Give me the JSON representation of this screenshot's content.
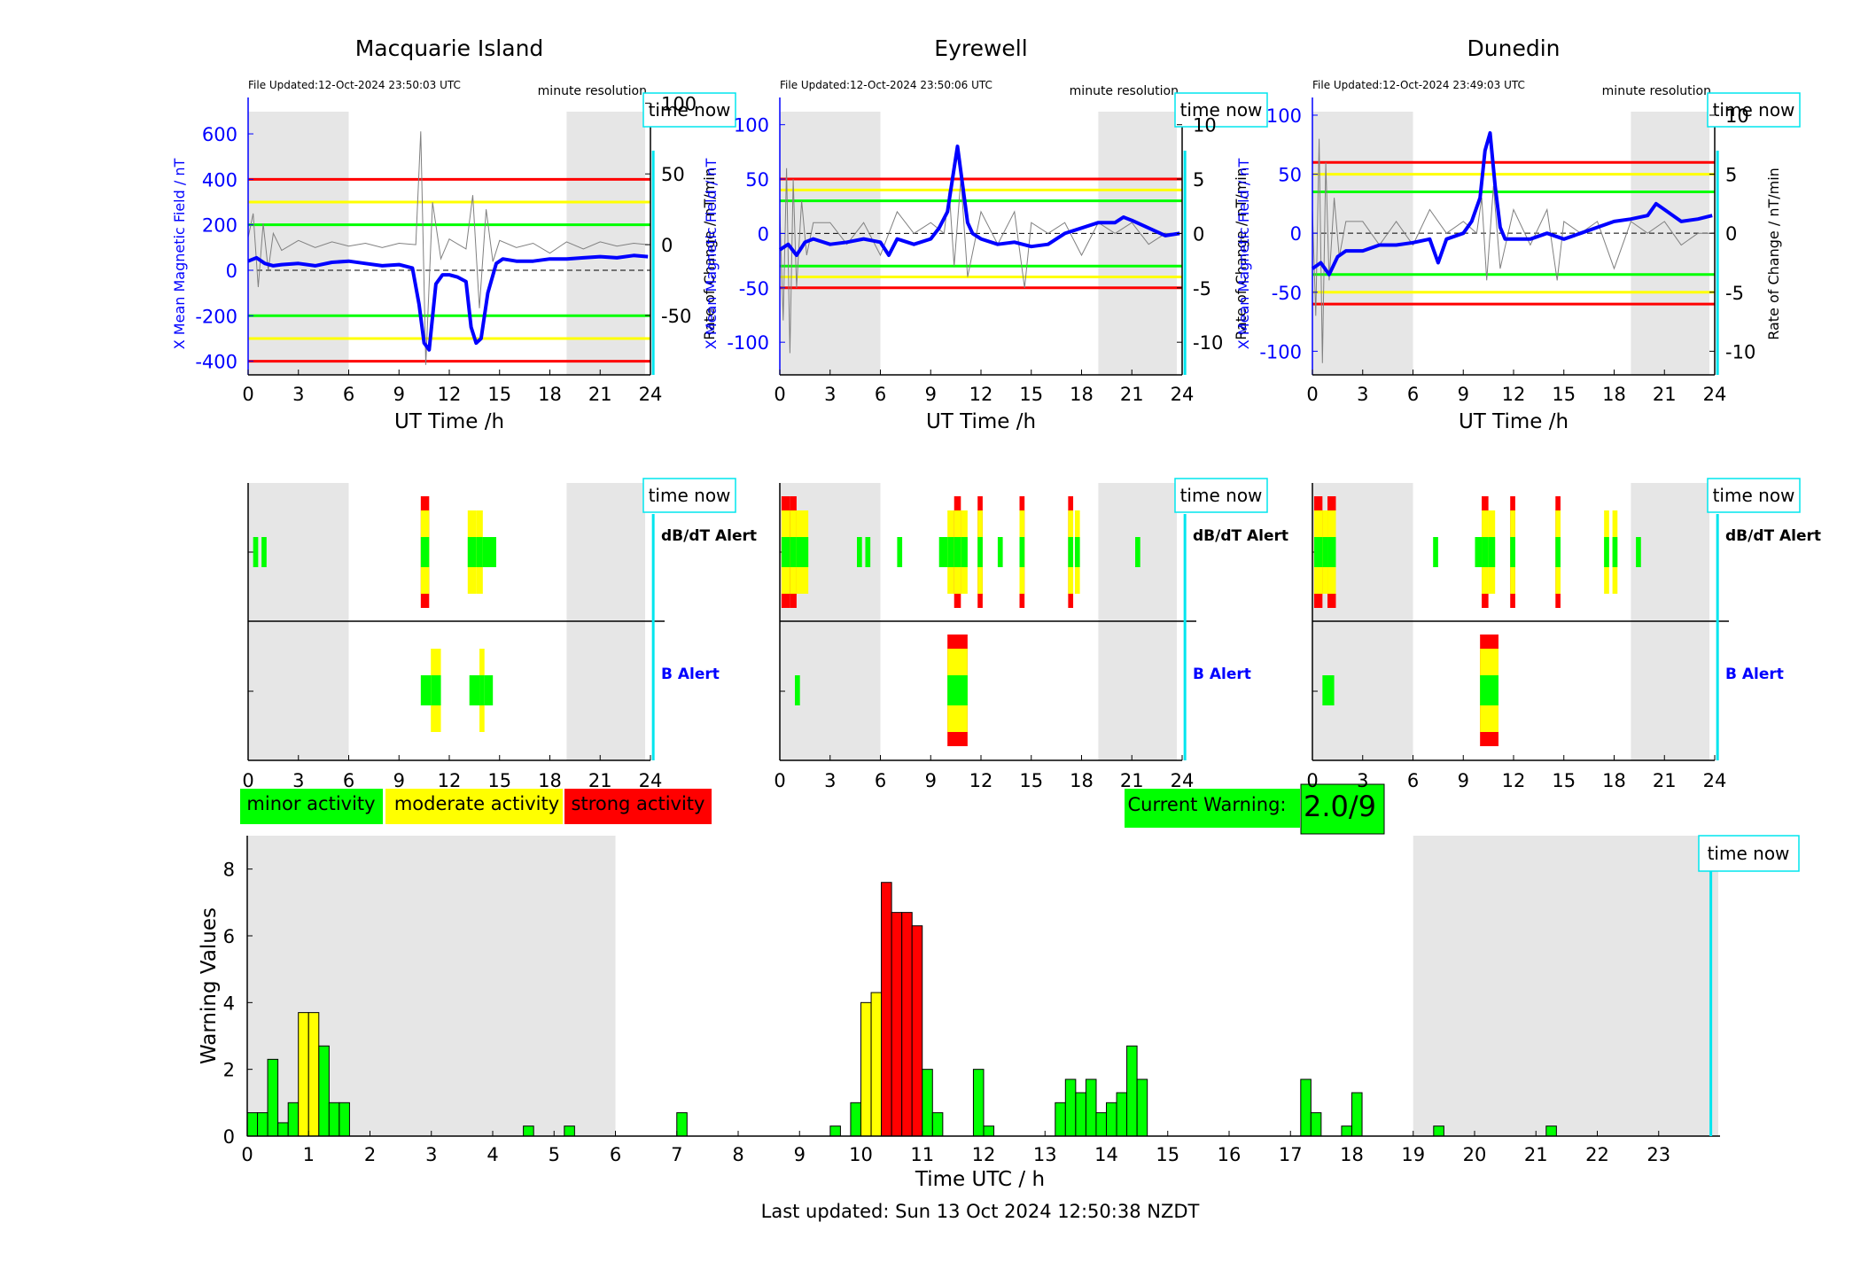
{
  "colors": {
    "minor": "#00ff00",
    "moderate": "#ffff00",
    "strong": "#ff0000",
    "x_trace": "#0000ff",
    "rate_trace": "#808080",
    "night_shade": "#e6e6e6",
    "time_now_line": "#00e5ee"
  },
  "labels": {
    "time_now": "time now",
    "minute_resolution": "minute resolution",
    "x_axis_top": "UT Time /h",
    "ylabel_left": "X Mean Magnetic Field / nT",
    "ylabel_right": "Rate of Change / nT/min",
    "dbdt_alert": "dB/dT Alert",
    "b_alert": "B Alert",
    "legend_minor": "minor activity",
    "legend_moderate": "moderate activity",
    "legend_strong": "strong activity",
    "current_warning_label": "Current Warning:",
    "current_warning_value": "2.0/9",
    "bottom_xlabel": "Time UTC / h",
    "bottom_ylabel": "Warning Values",
    "last_updated": "Last updated: Sun 13 Oct 2024 12:50:38 NZDT"
  },
  "chart_data": [
    {
      "type": "line",
      "station": "Macquarie Island",
      "file_updated": "File Updated:12-Oct-2024 23:50:03 UTC",
      "xlim": [
        0,
        24
      ],
      "x_ticks": [
        0,
        3,
        6,
        9,
        12,
        15,
        18,
        21,
        24
      ],
      "ylim_left": [
        -460,
        760
      ],
      "y_ticks_left": [
        -400,
        -200,
        0,
        200,
        400,
        600
      ],
      "ylim_right": [
        -92,
        104
      ],
      "y_ticks_right": [
        -50,
        0,
        50,
        100
      ],
      "thresholds": {
        "minor": 200,
        "moderate": 300,
        "strong": 400
      },
      "night_shading": [
        [
          0,
          6
        ],
        [
          19,
          24
        ]
      ],
      "time_now": 23.85,
      "x_series": {
        "x": [
          0,
          0.5,
          1,
          1.5,
          2,
          3,
          4,
          5,
          6,
          7,
          8,
          9,
          9.8,
          10.2,
          10.5,
          10.8,
          11.2,
          11.6,
          12,
          12.5,
          13,
          13.3,
          13.6,
          13.9,
          14.3,
          14.8,
          15.2,
          16,
          17,
          18,
          19,
          20,
          21,
          22,
          23,
          23.85
        ],
        "y": [
          40,
          55,
          30,
          20,
          25,
          30,
          20,
          35,
          40,
          30,
          20,
          25,
          10,
          -150,
          -320,
          -350,
          -60,
          -20,
          -20,
          -30,
          -50,
          -250,
          -320,
          -300,
          -100,
          30,
          50,
          40,
          40,
          50,
          50,
          55,
          60,
          55,
          65,
          60
        ]
      },
      "rate_series": {
        "x": [
          0,
          0.3,
          0.6,
          0.9,
          1.2,
          1.5,
          2,
          3,
          4,
          5,
          6,
          7,
          8,
          9,
          10,
          10.3,
          10.6,
          11,
          11.5,
          12,
          13,
          13.4,
          13.8,
          14.2,
          14.6,
          15,
          16,
          17,
          18,
          19,
          20,
          21,
          22,
          23,
          23.85
        ],
        "y": [
          5,
          22,
          -30,
          15,
          -18,
          8,
          -4,
          3,
          -2,
          2,
          -1,
          1,
          -2,
          1,
          0,
          80,
          -85,
          30,
          -10,
          4,
          -3,
          35,
          -45,
          25,
          -12,
          3,
          -2,
          1,
          -6,
          2,
          -3,
          2,
          -1,
          1,
          0
        ]
      },
      "dbdt_alert": [
        {
          "start": 0.3,
          "end": 0.6,
          "level": 1
        },
        {
          "start": 0.8,
          "end": 1.1,
          "level": 1
        },
        {
          "start": 10.3,
          "end": 10.8,
          "level": 3
        },
        {
          "start": 13.1,
          "end": 13.6,
          "level": 2
        },
        {
          "start": 13.6,
          "end": 14.0,
          "level": 2
        },
        {
          "start": 14.0,
          "end": 14.8,
          "level": 1
        }
      ],
      "b_alert": [
        {
          "start": 10.3,
          "end": 10.9,
          "level": 1
        },
        {
          "start": 10.9,
          "end": 11.5,
          "level": 2
        },
        {
          "start": 13.2,
          "end": 13.8,
          "level": 1
        },
        {
          "start": 13.8,
          "end": 14.1,
          "level": 2
        },
        {
          "start": 14.1,
          "end": 14.6,
          "level": 1
        }
      ]
    },
    {
      "type": "line",
      "station": "Eyrewell",
      "file_updated": "File Updated:12-Oct-2024 23:50:06 UTC",
      "xlim": [
        0,
        24
      ],
      "x_ticks": [
        0,
        3,
        6,
        9,
        12,
        15,
        18,
        21,
        24
      ],
      "ylim_left": [
        -130,
        125
      ],
      "y_ticks_left": [
        -100,
        -50,
        0,
        50,
        100
      ],
      "ylim_right": [
        -13,
        12.5
      ],
      "y_ticks_right": [
        -10,
        -5,
        0,
        5,
        10
      ],
      "thresholds": {
        "minor": 30,
        "moderate": 40,
        "strong": 50
      },
      "night_shading": [
        [
          0,
          6
        ],
        [
          19,
          24
        ]
      ],
      "time_now": 23.85,
      "x_series": {
        "x": [
          0,
          0.5,
          1,
          1.5,
          2,
          3,
          4,
          5,
          6,
          6.5,
          7,
          8,
          9,
          9.5,
          10,
          10.3,
          10.6,
          10.9,
          11.2,
          11.5,
          12,
          13,
          14,
          15,
          16,
          17,
          18,
          19,
          20,
          20.5,
          21,
          22,
          23,
          23.85
        ],
        "y": [
          -15,
          -10,
          -20,
          -8,
          -5,
          -10,
          -8,
          -5,
          -8,
          -20,
          -5,
          -10,
          -5,
          5,
          20,
          50,
          80,
          45,
          10,
          0,
          -5,
          -10,
          -8,
          -12,
          -10,
          0,
          5,
          10,
          10,
          15,
          12,
          5,
          -2,
          0
        ]
      },
      "rate_series": {
        "x": [
          0,
          0.2,
          0.4,
          0.6,
          0.8,
          1.0,
          1.3,
          1.6,
          2,
          3,
          4,
          5,
          6,
          7,
          8,
          9,
          9.8,
          10.1,
          10.4,
          10.8,
          11.2,
          12,
          13,
          14,
          14.6,
          15,
          16,
          17,
          18,
          19,
          20,
          21,
          22,
          23,
          23.85
        ],
        "y": [
          2,
          -8,
          6,
          -11,
          5,
          -5,
          3,
          -2,
          1,
          1,
          -1,
          1,
          -2,
          2,
          0,
          1,
          0,
          4,
          -3,
          5,
          -4,
          2,
          -1,
          2,
          -5,
          1,
          0,
          1,
          -2,
          1,
          0,
          1,
          -1,
          0,
          0
        ]
      },
      "dbdt_alert": [
        {
          "start": 0.1,
          "end": 0.6,
          "level": 3
        },
        {
          "start": 0.6,
          "end": 1.0,
          "level": 3
        },
        {
          "start": 1.0,
          "end": 1.7,
          "level": 2
        },
        {
          "start": 4.6,
          "end": 4.9,
          "level": 1
        },
        {
          "start": 5.1,
          "end": 5.4,
          "level": 1
        },
        {
          "start": 7.0,
          "end": 7.3,
          "level": 1
        },
        {
          "start": 9.5,
          "end": 10.0,
          "level": 1
        },
        {
          "start": 10.0,
          "end": 10.4,
          "level": 2
        },
        {
          "start": 10.4,
          "end": 10.8,
          "level": 3
        },
        {
          "start": 10.8,
          "end": 11.2,
          "level": 2
        },
        {
          "start": 11.8,
          "end": 12.1,
          "level": 3
        },
        {
          "start": 13.0,
          "end": 13.3,
          "level": 1
        },
        {
          "start": 14.3,
          "end": 14.6,
          "level": 3
        },
        {
          "start": 17.2,
          "end": 17.5,
          "level": 3
        },
        {
          "start": 17.6,
          "end": 17.9,
          "level": 2
        },
        {
          "start": 21.2,
          "end": 21.5,
          "level": 1
        }
      ],
      "b_alert": [
        {
          "start": 0.9,
          "end": 1.2,
          "level": 1
        },
        {
          "start": 10.0,
          "end": 11.2,
          "level": 3
        }
      ]
    },
    {
      "type": "line",
      "station": "Dunedin",
      "file_updated": "File Updated:12-Oct-2024 23:49:03 UTC",
      "xlim": [
        0,
        24
      ],
      "x_ticks": [
        0,
        3,
        6,
        9,
        12,
        15,
        18,
        21,
        24
      ],
      "ylim_left": [
        -120,
        115
      ],
      "y_ticks_left": [
        -100,
        -50,
        0,
        50,
        100
      ],
      "ylim_right": [
        -12,
        11.5
      ],
      "y_ticks_right": [
        -10,
        -5,
        0,
        5,
        10
      ],
      "thresholds": {
        "minor": 35,
        "moderate": 50,
        "strong": 60
      },
      "night_shading": [
        [
          0,
          6
        ],
        [
          19,
          24
        ]
      ],
      "time_now": 23.85,
      "x_series": {
        "x": [
          0,
          0.5,
          1,
          1.5,
          2,
          3,
          4,
          5,
          6,
          7,
          7.5,
          8,
          9,
          9.5,
          10,
          10.3,
          10.6,
          10.9,
          11.2,
          11.5,
          12,
          13,
          14,
          15,
          16,
          17,
          18,
          19,
          20,
          20.5,
          21,
          22,
          23,
          23.85
        ],
        "y": [
          -30,
          -25,
          -35,
          -20,
          -15,
          -15,
          -10,
          -10,
          -8,
          -5,
          -25,
          -5,
          0,
          10,
          30,
          70,
          85,
          40,
          5,
          -5,
          -5,
          -5,
          0,
          -5,
          0,
          5,
          10,
          12,
          15,
          25,
          20,
          10,
          12,
          15
        ]
      },
      "rate_series": {
        "x": [
          0,
          0.2,
          0.4,
          0.6,
          0.8,
          1.0,
          1.3,
          1.6,
          2,
          3,
          4,
          5,
          6,
          7,
          8,
          9,
          9.8,
          10.1,
          10.4,
          10.8,
          11.2,
          12,
          13,
          14,
          14.6,
          15,
          16,
          17,
          18,
          19,
          20,
          21,
          22,
          23,
          23.85
        ],
        "y": [
          2,
          -7,
          8,
          -11,
          6,
          -4,
          3,
          -2,
          1,
          1,
          -1,
          1,
          -1,
          2,
          0,
          1,
          0,
          3,
          -4,
          4,
          -3,
          2,
          -1,
          2,
          -4,
          1,
          0,
          1,
          -3,
          1,
          0,
          1,
          -1,
          0,
          0
        ]
      },
      "dbdt_alert": [
        {
          "start": 0.1,
          "end": 0.6,
          "level": 3
        },
        {
          "start": 0.6,
          "end": 0.9,
          "level": 2
        },
        {
          "start": 0.9,
          "end": 1.4,
          "level": 3
        },
        {
          "start": 7.2,
          "end": 7.5,
          "level": 1
        },
        {
          "start": 9.7,
          "end": 10.1,
          "level": 1
        },
        {
          "start": 10.1,
          "end": 10.5,
          "level": 3
        },
        {
          "start": 10.5,
          "end": 10.9,
          "level": 2
        },
        {
          "start": 11.8,
          "end": 12.1,
          "level": 3
        },
        {
          "start": 14.5,
          "end": 14.8,
          "level": 3
        },
        {
          "start": 17.4,
          "end": 17.7,
          "level": 2
        },
        {
          "start": 17.9,
          "end": 18.2,
          "level": 2
        },
        {
          "start": 19.3,
          "end": 19.6,
          "level": 1
        }
      ],
      "b_alert": [
        {
          "start": 0.6,
          "end": 1.3,
          "level": 1
        },
        {
          "start": 10.0,
          "end": 11.1,
          "level": 3
        }
      ]
    },
    {
      "type": "bar",
      "xlabel": "Time UTC / h",
      "ylabel": "Warning Values",
      "xlim": [
        0,
        24
      ],
      "x_ticks": [
        0,
        1,
        2,
        3,
        4,
        5,
        6,
        7,
        8,
        9,
        10,
        11,
        12,
        13,
        14,
        15,
        16,
        17,
        18,
        19,
        20,
        21,
        22,
        23
      ],
      "ylim": [
        0,
        9
      ],
      "y_ticks": [
        0,
        2,
        4,
        6,
        8
      ],
      "bar_width": 0.1667,
      "night_shading": [
        [
          0,
          6
        ],
        [
          19,
          24
        ]
      ],
      "time_now": 23.85,
      "level_thresholds": {
        "moderate": 3,
        "strong": 5
      },
      "bars": {
        "x": [
          0.0,
          0.167,
          0.333,
          0.5,
          0.667,
          0.833,
          1.0,
          1.167,
          1.333,
          1.5,
          4.5,
          5.167,
          7.0,
          9.5,
          9.833,
          10.0,
          10.167,
          10.333,
          10.5,
          10.667,
          10.833,
          11.0,
          11.167,
          11.833,
          12.0,
          13.167,
          13.333,
          13.5,
          13.667,
          13.833,
          14.0,
          14.167,
          14.333,
          14.5,
          17.167,
          17.333,
          17.833,
          18.0,
          19.333,
          21.167
        ],
        "y": [
          0.7,
          0.7,
          2.3,
          0.4,
          1.0,
          3.7,
          3.7,
          2.7,
          1.0,
          1.0,
          0.3,
          0.3,
          0.7,
          0.3,
          1.0,
          4.0,
          4.3,
          7.6,
          6.7,
          6.7,
          6.3,
          2.0,
          0.7,
          2.0,
          0.3,
          1.0,
          1.7,
          1.3,
          1.7,
          0.7,
          1.0,
          1.3,
          2.7,
          1.7,
          1.7,
          0.7,
          0.3,
          1.3,
          0.3,
          0.3
        ]
      }
    }
  ]
}
